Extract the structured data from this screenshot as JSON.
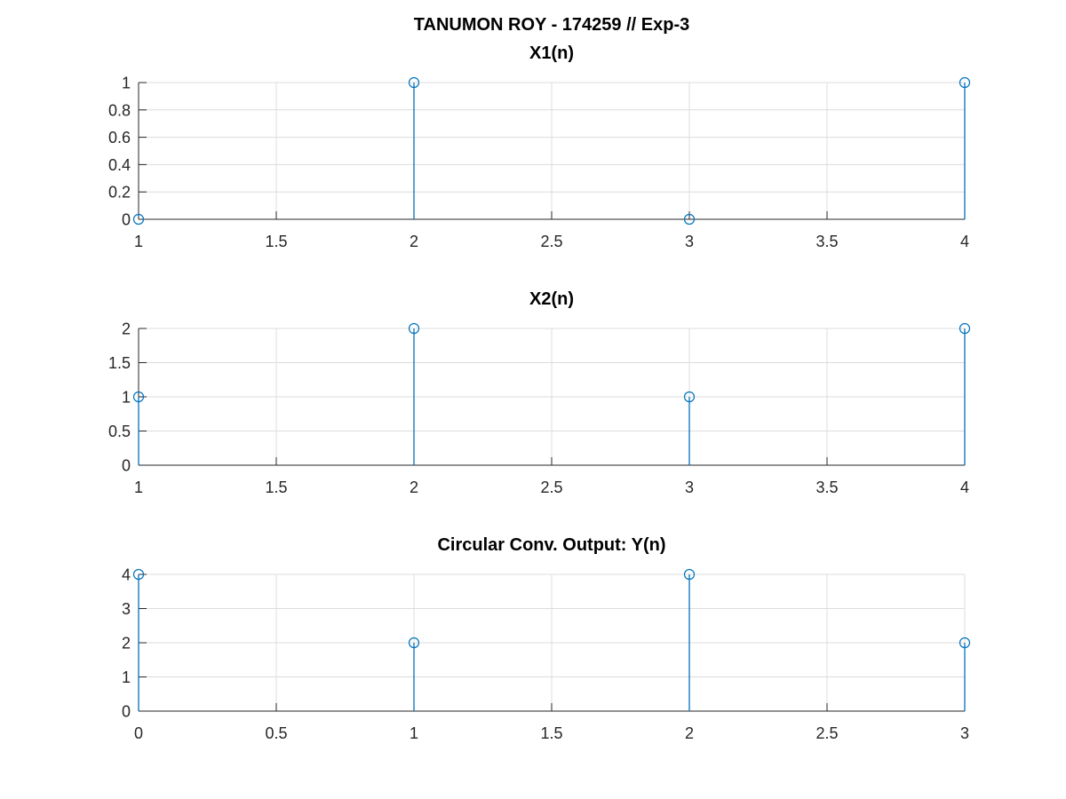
{
  "figure": {
    "suptitle": "TANUMON ROY - 174259  // Exp-3",
    "colors": {
      "stem": "#0072bd",
      "grid": "#dcdcdc",
      "axis": "#262626"
    }
  },
  "chart_data": [
    {
      "type": "stem",
      "title": "X1(n)",
      "x": [
        1,
        2,
        3,
        4
      ],
      "y": [
        0,
        1,
        0,
        1
      ],
      "xlim": [
        1,
        4
      ],
      "ylim": [
        0,
        1
      ],
      "xticks": [
        1,
        1.5,
        2,
        2.5,
        3,
        3.5,
        4
      ],
      "xtick_labels": [
        "1",
        "1.5",
        "2",
        "2.5",
        "3",
        "3.5",
        "4"
      ],
      "yticks": [
        0,
        0.2,
        0.4,
        0.6,
        0.8,
        1
      ],
      "ytick_labels": [
        "0",
        "0.2",
        "0.4",
        "0.6",
        "0.8",
        "1"
      ],
      "grid": true
    },
    {
      "type": "stem",
      "title": "X2(n)",
      "x": [
        1,
        2,
        3,
        4
      ],
      "y": [
        1,
        2,
        1,
        2
      ],
      "xlim": [
        1,
        4
      ],
      "ylim": [
        0,
        2
      ],
      "xticks": [
        1,
        1.5,
        2,
        2.5,
        3,
        3.5,
        4
      ],
      "xtick_labels": [
        "1",
        "1.5",
        "2",
        "2.5",
        "3",
        "3.5",
        "4"
      ],
      "yticks": [
        0,
        0.5,
        1,
        1.5,
        2
      ],
      "ytick_labels": [
        "0",
        "0.5",
        "1",
        "1.5",
        "2"
      ],
      "grid": true
    },
    {
      "type": "stem",
      "title": "Circular Conv. Output: Y(n)",
      "x": [
        0,
        1,
        2,
        3
      ],
      "y": [
        4,
        2,
        4,
        2
      ],
      "xlim": [
        0,
        3
      ],
      "ylim": [
        0,
        4
      ],
      "xticks": [
        0,
        0.5,
        1,
        1.5,
        2,
        2.5,
        3
      ],
      "xtick_labels": [
        "0",
        "0.5",
        "1",
        "1.5",
        "2",
        "2.5",
        "3"
      ],
      "yticks": [
        0,
        1,
        2,
        3,
        4
      ],
      "ytick_labels": [
        "0",
        "1",
        "2",
        "3",
        "4"
      ],
      "grid": true
    }
  ]
}
